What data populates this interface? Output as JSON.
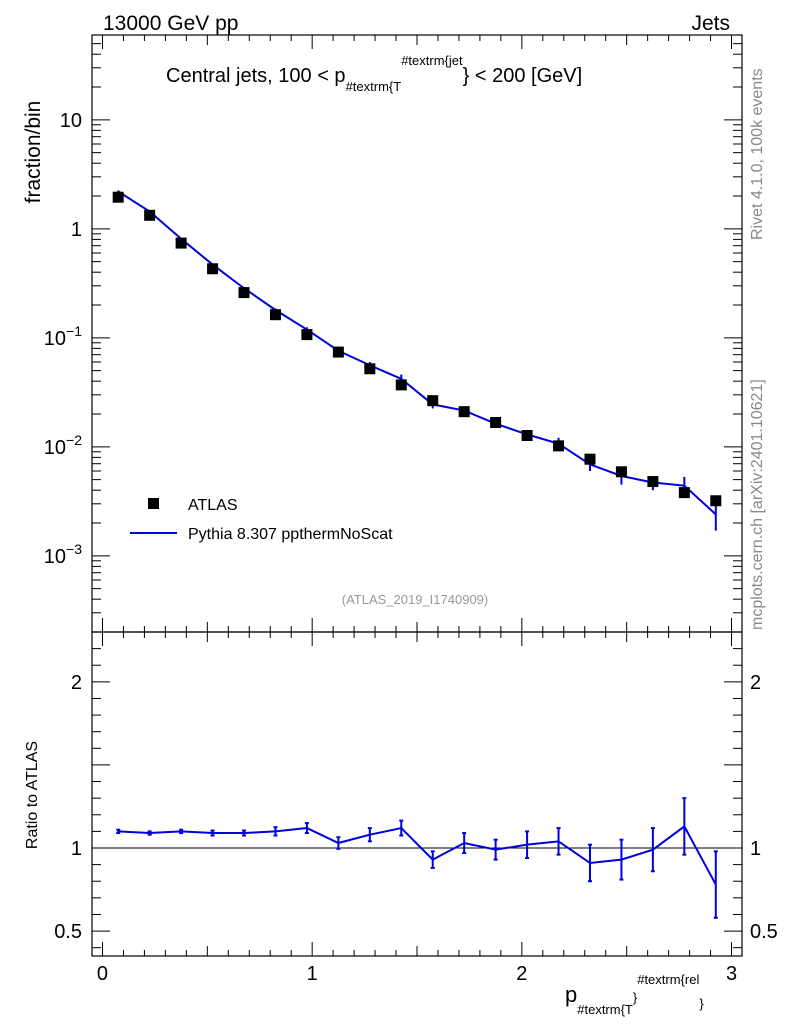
{
  "header": {
    "left": "13000 GeV pp",
    "right": "Jets"
  },
  "side_labels": {
    "rivet": "Rivet 4.1.0,  100k events",
    "mcplots": "mcplots.cern.ch [arXiv:2401.10621]"
  },
  "watermark": "(ATLAS_2019_I1740909)",
  "colors": {
    "data": "#000000",
    "mc": "#0000dd",
    "watermark": "#999999",
    "side": "#888888"
  },
  "chart_data": {
    "type": "scatter",
    "title": {
      "pre": "Central jets, 100 < p",
      "sub": "#textrm{T",
      "sup": "#textrm{jet",
      "post": "} < 200 [GeV]"
    },
    "ylabel": "fraction/bin",
    "ratio_ylabel": "Ratio to ATLAS",
    "xlabel": {
      "main": "p",
      "sub": "#textrm{T",
      "brace": "}",
      "sup": "#textrm{rel",
      "close": "}"
    },
    "xlim": [
      -0.05,
      3.05
    ],
    "ylim": [
      0.0002,
      60
    ],
    "ratio_ylim": [
      0.35,
      2.3
    ],
    "x_ticks": [
      {
        "value": 0,
        "label": "0"
      },
      {
        "value": 1,
        "label": "1"
      },
      {
        "value": 2,
        "label": "2"
      },
      {
        "value": 3,
        "label": "3"
      }
    ],
    "y_ticks": [
      {
        "value": 10,
        "base": "10",
        "exp": ""
      },
      {
        "value": 1,
        "base": "1",
        "exp": ""
      },
      {
        "value": 0.1,
        "base": "10",
        "exp": "−1"
      },
      {
        "value": 0.01,
        "base": "10",
        "exp": "−2"
      },
      {
        "value": 0.001,
        "base": "10",
        "exp": "−3"
      }
    ],
    "ratio_y_ticks": [
      {
        "value": 2,
        "label": "2"
      },
      {
        "value": 1,
        "label": "1"
      },
      {
        "value": 0.5,
        "label": "0.5"
      }
    ],
    "legend": [
      "ATLAS",
      "Pythia 8.307 ppthermNoScat"
    ],
    "x": [
      0.075,
      0.225,
      0.375,
      0.525,
      0.675,
      0.825,
      0.975,
      1.125,
      1.275,
      1.425,
      1.575,
      1.725,
      1.875,
      2.025,
      2.175,
      2.325,
      2.475,
      2.625,
      2.775,
      2.925
    ],
    "series": [
      {
        "name": "ATLAS",
        "values": [
          1.95,
          1.33,
          0.74,
          0.43,
          0.26,
          0.163,
          0.107,
          0.074,
          0.052,
          0.037,
          0.0265,
          0.021,
          0.0167,
          0.0127,
          0.0102,
          0.0077,
          0.0059,
          0.0048,
          0.0038,
          0.0032
        ]
      },
      {
        "name": "Pythia 8.307 ppthermNoScat",
        "values": [
          2.2,
          1.44,
          0.81,
          0.47,
          0.285,
          0.18,
          0.119,
          0.076,
          0.056,
          0.042,
          0.0245,
          0.0215,
          0.0163,
          0.013,
          0.0107,
          0.0069,
          0.0054,
          0.0047,
          0.0044,
          0.0024
        ],
        "errors": [
          0.05,
          0.03,
          0.02,
          0.012,
          0.008,
          0.006,
          0.006,
          0.004,
          0.004,
          0.004,
          0.002,
          0.002,
          0.0012,
          0.0012,
          0.0014,
          0.0009,
          0.0009,
          0.0007,
          0.0009,
          0.0007
        ]
      }
    ],
    "ratio": {
      "values": [
        1.1,
        1.09,
        1.1,
        1.09,
        1.09,
        1.1,
        1.12,
        1.03,
        1.08,
        1.12,
        0.93,
        1.03,
        0.99,
        1.02,
        1.04,
        0.91,
        0.93,
        0.99,
        1.13,
        0.78
      ],
      "errors": [
        0.01,
        0.01,
        0.01,
        0.015,
        0.015,
        0.025,
        0.03,
        0.035,
        0.04,
        0.045,
        0.05,
        0.06,
        0.06,
        0.08,
        0.08,
        0.11,
        0.12,
        0.13,
        0.17,
        0.2
      ]
    }
  }
}
